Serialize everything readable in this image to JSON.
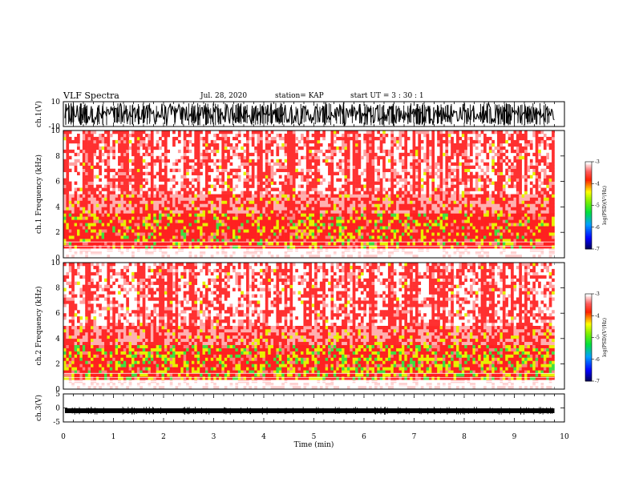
{
  "header": {
    "title": "VLF Spectra",
    "date": "Jul. 28, 2020",
    "station": "station= KAP",
    "start_ut": "start UT = 3 : 30 : 1"
  },
  "colors": {
    "spec_low": "#000080",
    "spec_mid": "#00dd00",
    "spec_high": "#ff2020",
    "spec_sat": "#ffffff",
    "waveform": "#000000"
  },
  "chart_data": [
    {
      "type": "line",
      "name": "ch1-waveform",
      "ylabel": "ch.1(V)",
      "ylim": [
        -10,
        10
      ],
      "yticks": [
        "10",
        "-10"
      ],
      "xlim": [
        0,
        10
      ],
      "description_level": "dense waveform spanning roughly -10 to 10 V"
    },
    {
      "type": "heatmap",
      "name": "ch1-spectrogram",
      "ylabel": "ch.1 Frequency (kHz)",
      "ylim": [
        0,
        10
      ],
      "yticks": [
        "0",
        "2",
        "4",
        "6",
        "8",
        "10"
      ],
      "xlim": [
        0,
        10
      ],
      "colorbar": {
        "label": "log(PSD)(V²/Hz)",
        "ticks": [
          "-3",
          "-4",
          "-5",
          "-6",
          "-7"
        ],
        "range": [
          -7,
          -3
        ]
      }
    },
    {
      "type": "heatmap",
      "name": "ch2-spectrogram",
      "ylabel": "ch.2 Frequency (kHz)",
      "ylim": [
        0,
        10
      ],
      "yticks": [
        "0",
        "2",
        "4",
        "6",
        "8",
        "10"
      ],
      "xlim": [
        0,
        10
      ],
      "colorbar": {
        "label": "log(PSD)(V²/Hz)",
        "ticks": [
          "-3",
          "-4",
          "-5",
          "-6",
          "-7"
        ],
        "range": [
          -7,
          -3
        ]
      }
    },
    {
      "type": "line",
      "name": "ch3-waveform",
      "ylabel": "ch.3(V)",
      "ylim": [
        -5,
        5
      ],
      "yticks": [
        "5",
        "0",
        "-5"
      ],
      "xlim": [
        0,
        10
      ],
      "description_level": "near-constant trace around -1 V"
    }
  ],
  "xaxis": {
    "label": "Time (min)",
    "ticks": [
      "0",
      "1",
      "2",
      "3",
      "4",
      "5",
      "6",
      "7",
      "8",
      "9",
      "10"
    ],
    "data_end": 9.8
  }
}
